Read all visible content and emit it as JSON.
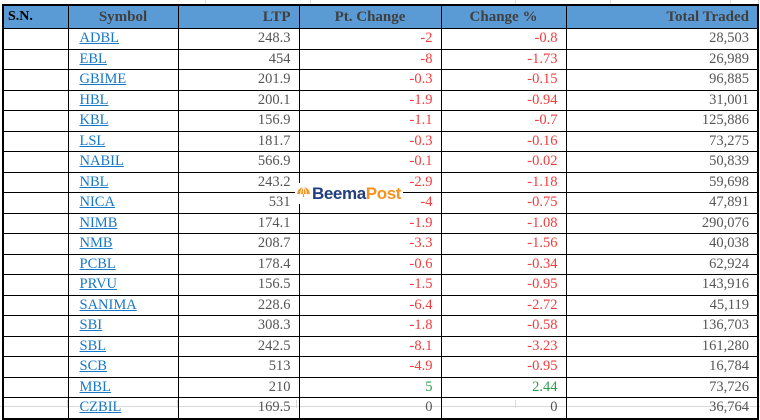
{
  "table": {
    "headers": [
      {
        "label": "S.N."
      },
      {
        "label": "Symbol"
      },
      {
        "label": "LTP"
      },
      {
        "label": "Pt. Change"
      },
      {
        "label": "Change %"
      },
      {
        "label": "Total Traded"
      }
    ],
    "rows": [
      {
        "sn": "",
        "symbol": "ADBL",
        "ltp": "248.3",
        "pt_change": "-2",
        "change_pct": "-0.8",
        "total_traded": "28,503",
        "trend": "down"
      },
      {
        "sn": "",
        "symbol": "EBL",
        "ltp": "454",
        "pt_change": "-8",
        "change_pct": "-1.73",
        "total_traded": "26,989",
        "trend": "down"
      },
      {
        "sn": "",
        "symbol": "GBIME",
        "ltp": "201.9",
        "pt_change": "-0.3",
        "change_pct": "-0.15",
        "total_traded": "96,885",
        "trend": "down"
      },
      {
        "sn": "",
        "symbol": "HBL",
        "ltp": "200.1",
        "pt_change": "-1.9",
        "change_pct": "-0.94",
        "total_traded": "31,001",
        "trend": "down"
      },
      {
        "sn": "",
        "symbol": "KBL",
        "ltp": "156.9",
        "pt_change": "-1.1",
        "change_pct": "-0.7",
        "total_traded": "125,886",
        "trend": "down"
      },
      {
        "sn": "",
        "symbol": "LSL",
        "ltp": "181.7",
        "pt_change": "-0.3",
        "change_pct": "-0.16",
        "total_traded": "73,275",
        "trend": "down"
      },
      {
        "sn": "",
        "symbol": "NABIL",
        "ltp": "566.9",
        "pt_change": "-0.1",
        "change_pct": "-0.02",
        "total_traded": "50,839",
        "trend": "down"
      },
      {
        "sn": "",
        "symbol": "NBL",
        "ltp": "243.2",
        "pt_change": "-2.9",
        "change_pct": "-1.18",
        "total_traded": "59,698",
        "trend": "down"
      },
      {
        "sn": "",
        "symbol": "NICA",
        "ltp": "531",
        "pt_change": "-4",
        "change_pct": "-0.75",
        "total_traded": "47,891",
        "trend": "down"
      },
      {
        "sn": "",
        "symbol": "NIMB",
        "ltp": "174.1",
        "pt_change": "-1.9",
        "change_pct": "-1.08",
        "total_traded": "290,076",
        "trend": "down"
      },
      {
        "sn": "",
        "symbol": "NMB",
        "ltp": "208.7",
        "pt_change": "-3.3",
        "change_pct": "-1.56",
        "total_traded": "40,038",
        "trend": "down"
      },
      {
        "sn": "",
        "symbol": "PCBL",
        "ltp": "178.4",
        "pt_change": "-0.6",
        "change_pct": "-0.34",
        "total_traded": "62,924",
        "trend": "down"
      },
      {
        "sn": "",
        "symbol": "PRVU",
        "ltp": "156.5",
        "pt_change": "-1.5",
        "change_pct": "-0.95",
        "total_traded": "143,916",
        "trend": "down"
      },
      {
        "sn": "",
        "symbol": "SANIMA",
        "ltp": "228.6",
        "pt_change": "-6.4",
        "change_pct": "-2.72",
        "total_traded": "45,119",
        "trend": "down"
      },
      {
        "sn": "",
        "symbol": "SBI",
        "ltp": "308.3",
        "pt_change": "-1.8",
        "change_pct": "-0.58",
        "total_traded": "136,703",
        "trend": "down"
      },
      {
        "sn": "",
        "symbol": "SBL",
        "ltp": "242.5",
        "pt_change": "-8.1",
        "change_pct": "-3.23",
        "total_traded": "161,280",
        "trend": "down"
      },
      {
        "sn": "",
        "symbol": "SCB",
        "ltp": "513",
        "pt_change": "-4.9",
        "change_pct": "-0.95",
        "total_traded": "16,784",
        "trend": "down"
      },
      {
        "sn": "",
        "symbol": "MBL",
        "ltp": "210",
        "pt_change": "5",
        "change_pct": "2.44",
        "total_traded": "73,726",
        "trend": "up"
      },
      {
        "sn": "",
        "symbol": "CZBIL",
        "ltp": "169.5",
        "pt_change": "0",
        "change_pct": "0",
        "total_traded": "36,764",
        "trend": "zero"
      }
    ]
  },
  "watermark": {
    "icon": "umbrella-icon",
    "brand_first": "Beema",
    "brand_second": "Post"
  },
  "colors": {
    "header_background": "#5b9bd5",
    "header_text": "#404040",
    "number_text": "#555555",
    "negative_red": "#f23c3e",
    "positive_green": "#2e9e4e",
    "link_blue": "#1778c8",
    "brand_navy": "#213e7f",
    "brand_orange": "#f6921e"
  }
}
